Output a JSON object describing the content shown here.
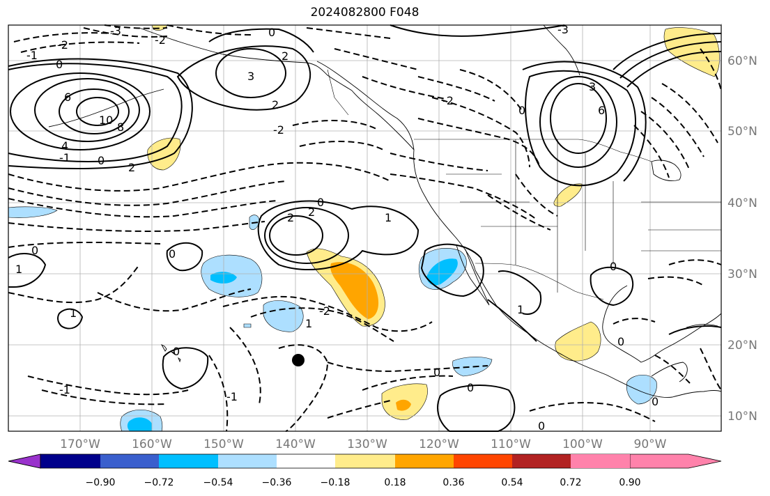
{
  "title": "2024082800 F048",
  "map": {
    "lon_labels": [
      "170°W",
      "160°W",
      "150°W",
      "140°W",
      "130°W",
      "120°W",
      "110°W",
      "100°W",
      "90°W"
    ],
    "lat_labels": [
      "60°N",
      "50°N",
      "40°N",
      "30°N",
      "20°N",
      "10°N"
    ],
    "contour_labels": [
      "-3",
      "-2",
      "-1",
      "0",
      "6",
      "10",
      "8",
      "4",
      "-2",
      "-1",
      "0",
      "2",
      "3",
      "0",
      "2",
      "2",
      "-2",
      "-3",
      "3",
      "6",
      "0",
      "2",
      "2",
      "1",
      "0",
      "0",
      "1",
      "0",
      "1",
      "-2",
      "1",
      "0",
      "-1",
      "0",
      "-1",
      "0",
      "0",
      "1",
      "0",
      "0",
      "0",
      "-2"
    ]
  },
  "colorbar": {
    "ticks": [
      "−0.90",
      "−0.72",
      "−0.54",
      "−0.36",
      "−0.18",
      "0.18",
      "0.36",
      "0.54",
      "0.72",
      "0.90"
    ],
    "colors": [
      "#9932CC",
      "#00008B",
      "#3A5FCD",
      "#00BFFF",
      "#ADDFFF",
      "#FFFFFF",
      "#FFEC8B",
      "#FFA500",
      "#FF4500",
      "#B22222",
      "#FF82AB"
    ]
  }
}
